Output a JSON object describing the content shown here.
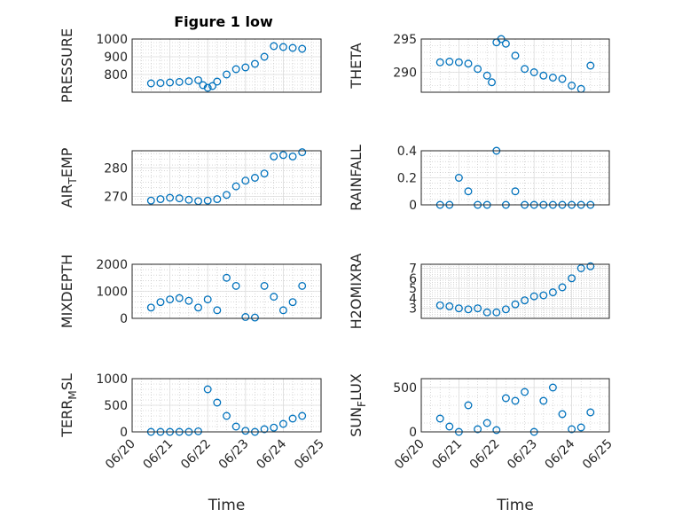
{
  "figure": {
    "title": "Figure 1 low"
  },
  "chart_data": [
    {
      "type": "scatter",
      "ylabel": "PRESSURE",
      "xlabel": "",
      "title": "Figure 1 low",
      "xlim": [
        "06/20",
        "06/25"
      ],
      "ylim": [
        700,
        1000
      ],
      "yticks": [
        "800",
        "900",
        "1000"
      ],
      "xticks": [],
      "x": [
        "06/20 12:00",
        "06/20 18:00",
        "06/21 00:00",
        "06/21 06:00",
        "06/21 12:00",
        "06/21 18:00",
        "06/21 21:00",
        "06/22 00:00",
        "06/22 03:00",
        "06/22 06:00",
        "06/22 12:00",
        "06/22 18:00",
        "06/23 00:00",
        "06/23 06:00",
        "06/23 12:00",
        "06/23 18:00",
        "06/24 00:00",
        "06/24 06:00",
        "06/24 12:00"
      ],
      "values": [
        750,
        752,
        755,
        758,
        762,
        768,
        740,
        725,
        735,
        760,
        800,
        830,
        840,
        860,
        900,
        960,
        955,
        950,
        945
      ]
    },
    {
      "type": "scatter",
      "ylabel": "THETA",
      "xlabel": "",
      "xlim": [
        "06/20",
        "06/25"
      ],
      "ylim": [
        287,
        295
      ],
      "yticks": [
        "290",
        "295"
      ],
      "xticks": [],
      "x": [
        "06/20 12:00",
        "06/20 18:00",
        "06/21 00:00",
        "06/21 06:00",
        "06/21 12:00",
        "06/21 18:00",
        "06/21 21:00",
        "06/22 00:00",
        "06/22 03:00",
        "06/22 06:00",
        "06/22 12:00",
        "06/22 18:00",
        "06/23 00:00",
        "06/23 06:00",
        "06/23 12:00",
        "06/23 18:00",
        "06/24 00:00",
        "06/24 06:00",
        "06/24 12:00"
      ],
      "values": [
        291.5,
        291.6,
        291.5,
        291.3,
        290.5,
        289.5,
        288.5,
        294.5,
        295.0,
        294.3,
        292.5,
        290.5,
        290.0,
        289.5,
        289.2,
        289.0,
        288.0,
        287.5,
        291.0
      ]
    },
    {
      "type": "scatter",
      "ylabel": "AIR_TEMP",
      "xlabel": "",
      "xlim": [
        "06/20",
        "06/25"
      ],
      "ylim": [
        267,
        286
      ],
      "yticks": [
        "270",
        "280"
      ],
      "xticks": [],
      "x": [
        "06/20 12:00",
        "06/20 18:00",
        "06/21 00:00",
        "06/21 06:00",
        "06/21 12:00",
        "06/21 18:00",
        "06/22 00:00",
        "06/22 06:00",
        "06/22 12:00",
        "06/22 18:00",
        "06/23 00:00",
        "06/23 06:00",
        "06/23 12:00",
        "06/23 18:00",
        "06/24 00:00",
        "06/24 06:00",
        "06/24 12:00"
      ],
      "values": [
        268.5,
        269.0,
        269.5,
        269.3,
        268.8,
        268.3,
        268.5,
        269.0,
        270.5,
        273.5,
        275.5,
        276.5,
        278.0,
        284.0,
        284.5,
        284.0,
        285.5
      ]
    },
    {
      "type": "scatter",
      "ylabel": "RAINFALL",
      "xlabel": "",
      "xlim": [
        "06/20",
        "06/25"
      ],
      "ylim": [
        0,
        0.4
      ],
      "yticks": [
        "0",
        "0.2",
        "0.4"
      ],
      "xticks": [],
      "x": [
        "06/20 12:00",
        "06/20 18:00",
        "06/21 00:00",
        "06/21 06:00",
        "06/21 12:00",
        "06/21 18:00",
        "06/22 00:00",
        "06/22 06:00",
        "06/22 12:00",
        "06/22 18:00",
        "06/23 00:00",
        "06/23 06:00",
        "06/23 12:00",
        "06/23 18:00",
        "06/24 00:00",
        "06/24 06:00",
        "06/24 12:00"
      ],
      "values": [
        0,
        0,
        0.2,
        0.1,
        0,
        0,
        0.4,
        0,
        0.1,
        0,
        0,
        0,
        0,
        0,
        0,
        0,
        0
      ]
    },
    {
      "type": "scatter",
      "ylabel": "MIXDEPTH",
      "xlabel": "",
      "xlim": [
        "06/20",
        "06/25"
      ],
      "ylim": [
        0,
        2000
      ],
      "yticks": [
        "0",
        "1000",
        "2000"
      ],
      "xticks": [],
      "x": [
        "06/20 12:00",
        "06/20 18:00",
        "06/21 00:00",
        "06/21 06:00",
        "06/21 12:00",
        "06/21 18:00",
        "06/22 00:00",
        "06/22 06:00",
        "06/22 12:00",
        "06/22 18:00",
        "06/23 00:00",
        "06/23 06:00",
        "06/23 12:00",
        "06/23 18:00",
        "06/24 00:00",
        "06/24 06:00",
        "06/24 12:00"
      ],
      "values": [
        400,
        600,
        700,
        750,
        650,
        400,
        700,
        300,
        1500,
        1200,
        50,
        30,
        1200,
        800,
        300,
        600,
        1200
      ]
    },
    {
      "type": "scatter",
      "ylabel": "H2OMIXRA",
      "xlabel": "",
      "xlim": [
        "06/20",
        "06/25"
      ],
      "ylim": [
        2,
        7.4
      ],
      "yticks": [
        "3",
        "4",
        "5",
        "6",
        "7"
      ],
      "xticks": [],
      "x": [
        "06/20 12:00",
        "06/20 18:00",
        "06/21 00:00",
        "06/21 06:00",
        "06/21 12:00",
        "06/21 18:00",
        "06/22 00:00",
        "06/22 06:00",
        "06/22 12:00",
        "06/22 18:00",
        "06/23 00:00",
        "06/23 06:00",
        "06/23 12:00",
        "06/23 18:00",
        "06/24 00:00",
        "06/24 06:00",
        "06/24 12:00"
      ],
      "values": [
        3.3,
        3.2,
        3.0,
        2.9,
        3.0,
        2.6,
        2.6,
        2.9,
        3.4,
        3.8,
        4.2,
        4.3,
        4.6,
        5.1,
        6.0,
        7.0,
        7.2
      ]
    },
    {
      "type": "scatter",
      "ylabel": "TERR_MSL",
      "xlabel": "Time",
      "xlim": [
        "06/20",
        "06/25"
      ],
      "ylim": [
        0,
        1000
      ],
      "yticks": [
        "0",
        "500",
        "1000"
      ],
      "xticks": [
        "06/20",
        "06/21",
        "06/22",
        "06/23",
        "06/24",
        "06/25"
      ],
      "x": [
        "06/20 12:00",
        "06/20 18:00",
        "06/21 00:00",
        "06/21 06:00",
        "06/21 12:00",
        "06/21 18:00",
        "06/22 00:00",
        "06/22 06:00",
        "06/22 12:00",
        "06/22 18:00",
        "06/23 00:00",
        "06/23 06:00",
        "06/23 12:00",
        "06/23 18:00",
        "06/24 00:00",
        "06/24 06:00",
        "06/24 12:00"
      ],
      "values": [
        0,
        0,
        0,
        0,
        0,
        10,
        800,
        550,
        300,
        100,
        20,
        0,
        50,
        80,
        150,
        250,
        300
      ]
    },
    {
      "type": "scatter",
      "ylabel": "SUN_FLUX",
      "xlabel": "Time",
      "xlim": [
        "06/20",
        "06/25"
      ],
      "ylim": [
        0,
        600
      ],
      "yticks": [
        "0",
        "500"
      ],
      "xticks": [
        "06/20",
        "06/21",
        "06/22",
        "06/23",
        "06/24",
        "06/25"
      ],
      "x": [
        "06/20 12:00",
        "06/20 18:00",
        "06/21 00:00",
        "06/21 06:00",
        "06/21 12:00",
        "06/21 18:00",
        "06/22 00:00",
        "06/22 06:00",
        "06/22 12:00",
        "06/22 18:00",
        "06/23 00:00",
        "06/23 06:00",
        "06/23 12:00",
        "06/23 18:00",
        "06/24 00:00",
        "06/24 06:00",
        "06/24 12:00"
      ],
      "values": [
        150,
        60,
        0,
        300,
        30,
        100,
        20,
        380,
        350,
        450,
        0,
        350,
        500,
        200,
        30,
        50,
        220
      ]
    }
  ],
  "style": {
    "marker_color": "#0072bd",
    "axis_color": "#262626",
    "grid": true,
    "minor_grid": true
  }
}
